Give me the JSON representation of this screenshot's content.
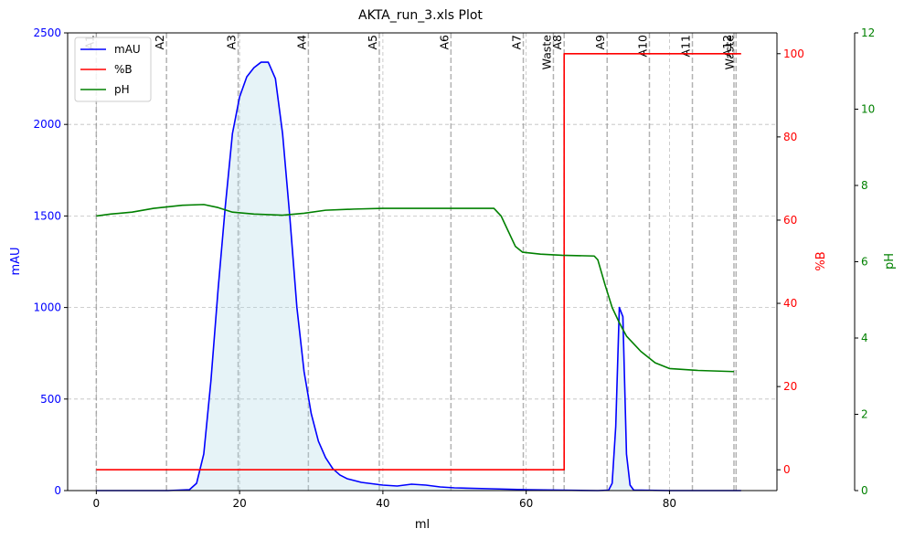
{
  "chart_data": {
    "type": "line",
    "title": "AKTA_run_3.xls Plot",
    "xlabel": "ml",
    "x_ticks": [
      0,
      20,
      40,
      60,
      80
    ],
    "xlim": [
      -4,
      95
    ],
    "axes": {
      "left": {
        "label": "mAU",
        "ylim": [
          0,
          2500
        ],
        "ticks": [
          0,
          500,
          1000,
          1500,
          2000,
          2500
        ],
        "color": "#0000ff"
      },
      "right1": {
        "label": "%B",
        "ylim": [
          -5,
          105
        ],
        "ticks": [
          0,
          20,
          40,
          60,
          80,
          100
        ],
        "color": "#ff0000"
      },
      "right2": {
        "label": "pH",
        "ylim": [
          0,
          12
        ],
        "ticks": [
          0,
          2,
          4,
          6,
          8,
          10,
          12
        ],
        "color": "#008000"
      }
    },
    "grid": true,
    "legend": {
      "placement": "upper-left"
    },
    "series": [
      {
        "name": "mAU",
        "axis": "left",
        "color": "#0000ff",
        "fill": "#add8e6",
        "points": [
          [
            0,
            0
          ],
          [
            10,
            0
          ],
          [
            13,
            5
          ],
          [
            14,
            40
          ],
          [
            15,
            200
          ],
          [
            16,
            600
          ],
          [
            17,
            1100
          ],
          [
            18,
            1550
          ],
          [
            19,
            1950
          ],
          [
            20,
            2150
          ],
          [
            21,
            2260
          ],
          [
            22,
            2310
          ],
          [
            23,
            2340
          ],
          [
            24,
            2340
          ],
          [
            25,
            2250
          ],
          [
            26,
            1950
          ],
          [
            27,
            1500
          ],
          [
            28,
            1000
          ],
          [
            29,
            650
          ],
          [
            30,
            420
          ],
          [
            31,
            270
          ],
          [
            32,
            180
          ],
          [
            33,
            120
          ],
          [
            34,
            85
          ],
          [
            35,
            65
          ],
          [
            37,
            45
          ],
          [
            40,
            30
          ],
          [
            42,
            25
          ],
          [
            44,
            35
          ],
          [
            46,
            30
          ],
          [
            48,
            20
          ],
          [
            50,
            15
          ],
          [
            55,
            10
          ],
          [
            60,
            5
          ],
          [
            65,
            2
          ],
          [
            70,
            0
          ],
          [
            71.5,
            2
          ],
          [
            72,
            40
          ],
          [
            72.5,
            350
          ],
          [
            73,
            1000
          ],
          [
            73.5,
            950
          ],
          [
            74,
            200
          ],
          [
            74.5,
            30
          ],
          [
            75,
            3
          ],
          [
            80,
            0
          ],
          [
            90,
            0
          ]
        ]
      },
      {
        "name": "%B",
        "axis": "right1",
        "color": "#ff0000",
        "points": [
          [
            0,
            0
          ],
          [
            65.3,
            0
          ],
          [
            65.3,
            100
          ],
          [
            90,
            100
          ]
        ]
      },
      {
        "name": "pH",
        "axis": "right2",
        "color": "#008000",
        "points": [
          [
            0,
            7.2
          ],
          [
            2,
            7.25
          ],
          [
            5,
            7.3
          ],
          [
            8,
            7.4
          ],
          [
            12,
            7.48
          ],
          [
            15,
            7.5
          ],
          [
            17,
            7.42
          ],
          [
            19,
            7.3
          ],
          [
            22,
            7.25
          ],
          [
            26,
            7.22
          ],
          [
            29,
            7.27
          ],
          [
            32,
            7.35
          ],
          [
            36,
            7.38
          ],
          [
            40,
            7.4
          ],
          [
            50,
            7.4
          ],
          [
            55.5,
            7.4
          ],
          [
            56.5,
            7.2
          ],
          [
            57.5,
            6.8
          ],
          [
            58.5,
            6.4
          ],
          [
            59.5,
            6.25
          ],
          [
            62,
            6.2
          ],
          [
            65,
            6.17
          ],
          [
            69.5,
            6.15
          ],
          [
            70,
            6.05
          ],
          [
            71,
            5.4
          ],
          [
            72,
            4.8
          ],
          [
            73,
            4.4
          ],
          [
            74,
            4.05
          ],
          [
            76,
            3.65
          ],
          [
            78,
            3.35
          ],
          [
            80,
            3.2
          ],
          [
            84,
            3.15
          ],
          [
            89,
            3.12
          ]
        ]
      }
    ],
    "fraction_markers": [
      {
        "label": "A1",
        "x": 0
      },
      {
        "label": "A2",
        "x": 9.8
      },
      {
        "label": "A3",
        "x": 19.8
      },
      {
        "label": "A4",
        "x": 29.6
      },
      {
        "label": "A5",
        "x": 39.5
      },
      {
        "label": "A6",
        "x": 49.5
      },
      {
        "label": "A7",
        "x": 59.6
      },
      {
        "label": "Waste",
        "x": 63.8
      },
      {
        "label": "A8",
        "x": 65.3
      },
      {
        "label": "A9",
        "x": 71.3
      },
      {
        "label": "A10",
        "x": 77.2
      },
      {
        "label": "A11",
        "x": 83.2
      },
      {
        "label": "A12",
        "x": 89.0
      },
      {
        "label": "Waste",
        "x": 89.3
      }
    ]
  }
}
